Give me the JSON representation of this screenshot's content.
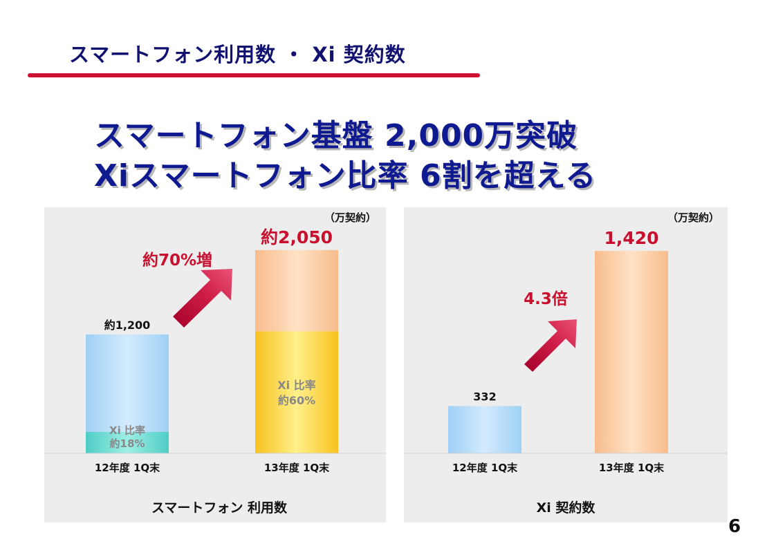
{
  "header": {
    "title": "スマートフォン利用数 ・ Xi 契約数"
  },
  "headline": {
    "line1": "スマートフォン基盤 2,000万突破",
    "line2": "Xiスマートフォン比率 6割を超える"
  },
  "page_number": "6",
  "colors": {
    "accent_red": "#cc1133",
    "navy": "#101070",
    "label_red": "#c8102e"
  },
  "chart_data": [
    {
      "type": "bar",
      "title": "スマートフォン 利用数",
      "unit": "（万契約）",
      "categories": [
        "12年度 1Q末",
        "13年度 1Q末"
      ],
      "series": [
        {
          "name": "Xi",
          "values": [
            216,
            1230
          ]
        },
        {
          "name": "total",
          "values": [
            1200,
            2050
          ]
        }
      ],
      "value_labels": [
        "約1,200",
        "約2,050"
      ],
      "xi_share_labels": [
        {
          "line1": "Xi 比率",
          "line2": "約18%"
        },
        {
          "line1": "Xi 比率",
          "line2": "約60%"
        }
      ],
      "growth_label": "約70%増",
      "ylim": [
        0,
        2300
      ]
    },
    {
      "type": "bar",
      "title": "Xi 契約数",
      "unit": "（万契約）",
      "categories": [
        "12年度 1Q末",
        "13年度 1Q末"
      ],
      "values": [
        332,
        1420
      ],
      "value_labels": [
        "332",
        "1,420"
      ],
      "growth_label": "4.3倍",
      "ylim": [
        0,
        1600
      ]
    }
  ]
}
